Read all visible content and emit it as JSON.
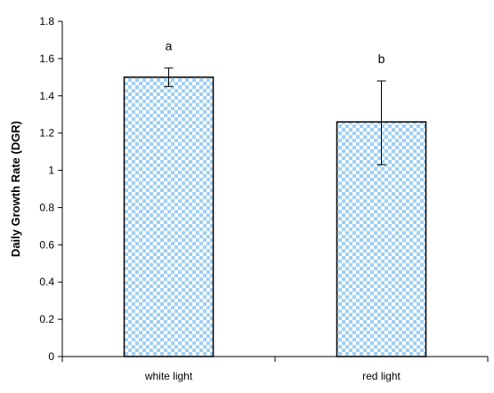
{
  "chart_data": {
    "type": "bar",
    "title": "",
    "xlabel": "",
    "ylabel": "Daily Growth Rate (DGR)",
    "ylim": [
      0,
      1.8
    ],
    "yticks": [
      0,
      0.2,
      0.4,
      0.6,
      0.8,
      1,
      1.2,
      1.4,
      1.6,
      1.8
    ],
    "ytick_labels": [
      "0",
      "0.2",
      "0.4",
      "0.6",
      "0.8",
      "1",
      "1.2",
      "1.4",
      "1.6",
      "1.8"
    ],
    "categories": [
      "white light",
      "red light"
    ],
    "values": [
      1.5,
      1.26
    ],
    "error_low": [
      1.45,
      1.03
    ],
    "error_high": [
      1.55,
      1.48
    ],
    "significance_labels": [
      "a",
      "b"
    ],
    "bar_fill": "#9fd0f5",
    "bar_fill_alt": "#ffffff",
    "bar_edge": "#000000",
    "grid": false,
    "legend": "none"
  }
}
